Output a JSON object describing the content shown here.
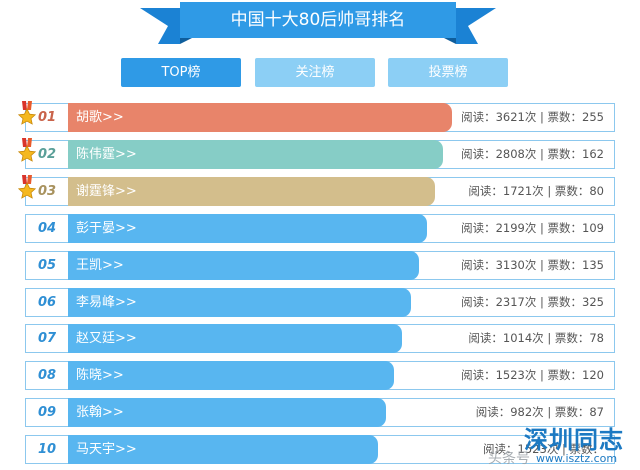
{
  "banner": {
    "title": "中国十大80后帅哥排名"
  },
  "tabs": [
    {
      "label": "TOP榜",
      "active": true
    },
    {
      "label": "关注榜",
      "active": false
    },
    {
      "label": "投票榜",
      "active": false
    }
  ],
  "list": [
    {
      "rank": "01",
      "name": "胡歌>>",
      "stats": "阅读：3621次 | 票数：255",
      "fill": 0.7,
      "color": "#e8846a",
      "rankColor": "#c9634a",
      "medal": true
    },
    {
      "rank": "02",
      "name": "陈伟霆>>",
      "stats": "阅读：2808次 | 票数：162",
      "fill": 0.685,
      "color": "#86cdc6",
      "rankColor": "#5a9f98",
      "medal": true
    },
    {
      "rank": "03",
      "name": "谢霆锋>>",
      "stats": "阅读：1721次 | 票数：80",
      "fill": 0.67,
      "color": "#d3be8c",
      "rankColor": "#a8925e",
      "medal": true
    },
    {
      "rank": "04",
      "name": "彭于晏>>",
      "stats": "阅读：2199次 | 票数：109",
      "fill": 0.655,
      "color": "#58b6f0",
      "rankColor": "#2f8fd4",
      "medal": false
    },
    {
      "rank": "05",
      "name": "王凯>>",
      "stats": "阅读：3130次 | 票数：135",
      "fill": 0.64,
      "color": "#58b6f0",
      "rankColor": "#2f8fd4",
      "medal": false
    },
    {
      "rank": "06",
      "name": "李易峰>>",
      "stats": "阅读：2317次 | 票数：325",
      "fill": 0.625,
      "color": "#58b6f0",
      "rankColor": "#2f8fd4",
      "medal": false
    },
    {
      "rank": "07",
      "name": "赵又廷>>",
      "stats": "阅读：1014次 | 票数：78",
      "fill": 0.61,
      "color": "#58b6f0",
      "rankColor": "#2f8fd4",
      "medal": false
    },
    {
      "rank": "08",
      "name": "陈晓>>",
      "stats": "阅读：1523次 | 票数：120",
      "fill": 0.595,
      "color": "#58b6f0",
      "rankColor": "#2f8fd4",
      "medal": false
    },
    {
      "rank": "09",
      "name": "张翰>>",
      "stats": "阅读：982次 | 票数：87",
      "fill": 0.58,
      "color": "#58b6f0",
      "rankColor": "#2f8fd4",
      "medal": false
    },
    {
      "rank": "10",
      "name": "马天宇>>",
      "stats": "阅读：1523次 | 票数：",
      "fill": 0.565,
      "color": "#58b6f0",
      "rankColor": "#2f8fd4",
      "medal": false
    }
  ],
  "watermark": {
    "brand": "深圳同志",
    "url": "www.isztz.com",
    "source": "头条号"
  },
  "icons": {
    "medal": "medal-icon"
  }
}
